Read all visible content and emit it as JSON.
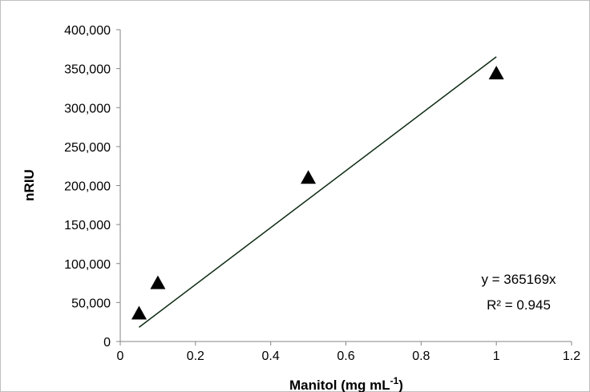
{
  "chart_data": {
    "type": "scatter",
    "xlabel": "Manitol (mg mL",
    "xlabel_superscript": "-1",
    "xlabel_suffix": ")",
    "ylabel": "nRIU",
    "xlim": [
      0,
      1.2
    ],
    "ylim": [
      0,
      400000
    ],
    "xticks": [
      0,
      0.2,
      0.4,
      0.6,
      0.8,
      1,
      1.2
    ],
    "xtick_labels": [
      "0",
      "0.2",
      "0.4",
      "0.6",
      "0.8",
      "1",
      "1.2"
    ],
    "yticks": [
      0,
      50000,
      100000,
      150000,
      200000,
      250000,
      300000,
      350000,
      400000
    ],
    "ytick_labels": [
      "0",
      "50,000",
      "100,000",
      "150,000",
      "200,000",
      "250,000",
      "300,000",
      "350,000",
      "400,000"
    ],
    "grid": false,
    "legend": "none",
    "marker": "triangle",
    "marker_color": "#000000",
    "series": [
      {
        "x": [
          0.05,
          0.1,
          0.5,
          1
        ],
        "y": [
          37000,
          76000,
          211000,
          345000
        ]
      }
    ],
    "trendline": {
      "slope": 365169,
      "intercept": 0,
      "x_range": [
        0.05,
        1
      ],
      "color": "#0d2a12",
      "equation": "y = 365169x",
      "r_squared": "R² = 0.945"
    }
  }
}
